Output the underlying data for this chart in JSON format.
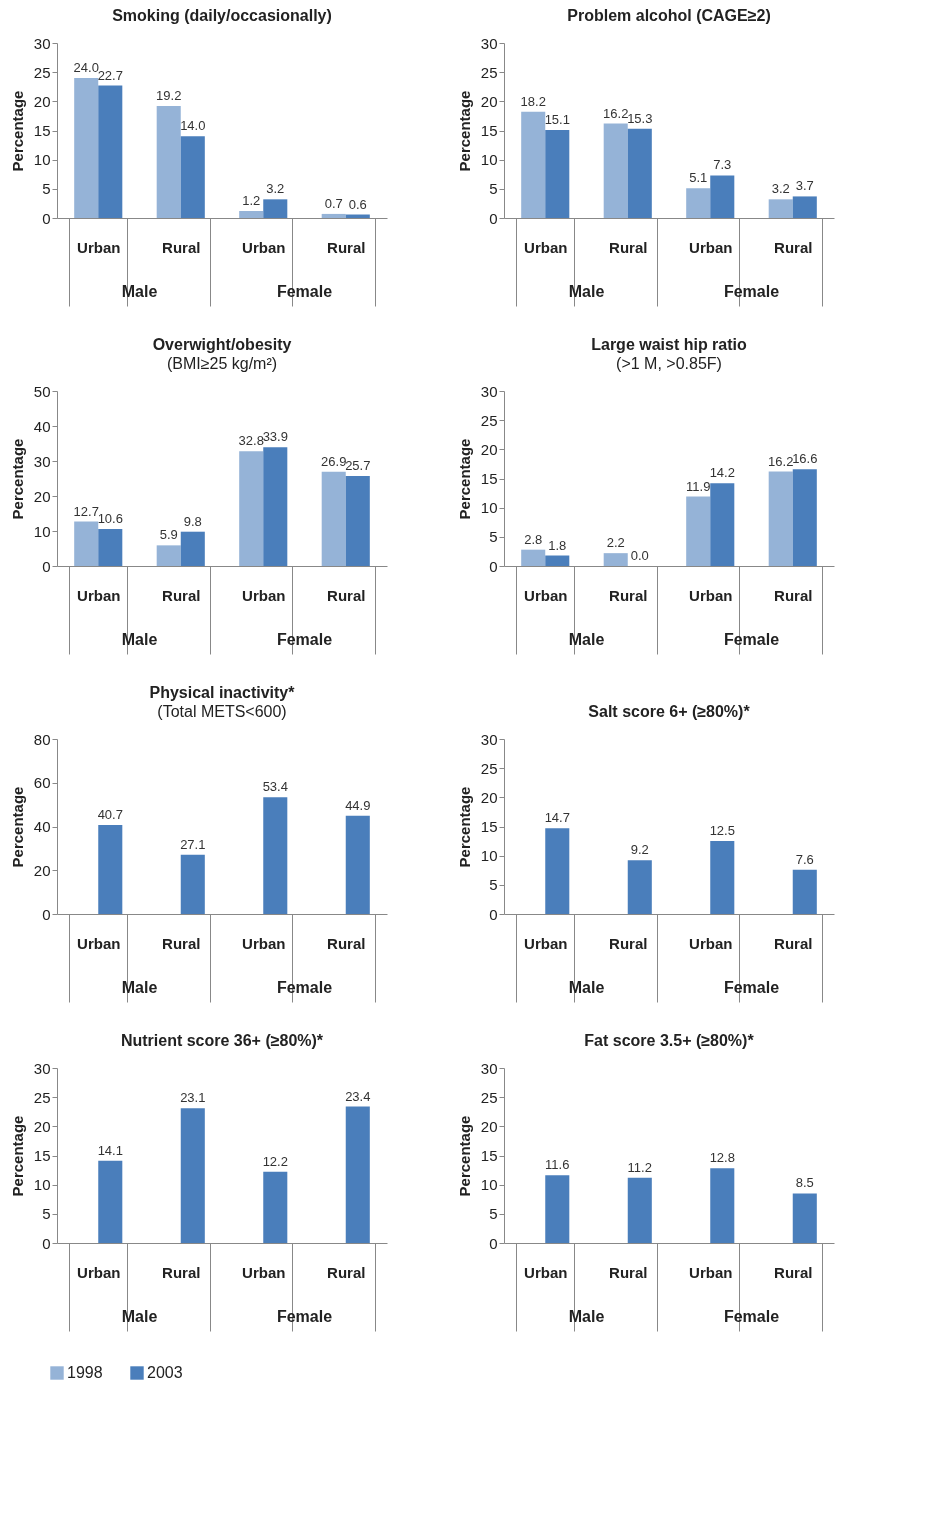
{
  "chart_data": [
    {
      "type": "bar",
      "title": "Smoking (daily/occasionally)",
      "ylabel": "Percentage",
      "categories": [
        "Urban",
        "Rural",
        "Urban",
        "Rural"
      ],
      "annotations": [
        "Male",
        "Female"
      ],
      "ylim": [
        0,
        30
      ],
      "yticks": [
        0,
        5,
        10,
        15,
        20,
        25,
        30
      ],
      "data_labels": true,
      "legend": "bottom",
      "series": [
        {
          "name": "1998",
          "color": "#95b3d7",
          "values": [
            24.0,
            19.2,
            1.2,
            0.7
          ],
          "value_labels": [
            "24.0",
            "19.2",
            "1.2",
            "0.7"
          ]
        },
        {
          "name": "2003",
          "color": "#4a7ebb",
          "values": [
            22.7,
            14.0,
            3.2,
            0.6
          ],
          "value_labels": [
            "22.7",
            "14.0",
            "3.2",
            "0.6"
          ]
        }
      ]
    },
    {
      "type": "bar",
      "title": "Problem alcohol (CAGE≥2)",
      "ylabel": "Percentage",
      "categories": [
        "Urban",
        "Rural",
        "Urban",
        "Rural"
      ],
      "annotations": [
        "Male",
        "Female"
      ],
      "ylim": [
        0,
        30
      ],
      "yticks": [
        0,
        5,
        10,
        15,
        20,
        25,
        30
      ],
      "data_labels": true,
      "legend": "bottom",
      "series": [
        {
          "name": "1998",
          "color": "#95b3d7",
          "values": [
            18.2,
            16.2,
            5.1,
            3.2
          ]
        },
        {
          "name": "2003",
          "color": "#4a7ebb",
          "values": [
            15.1,
            15.3,
            7.3,
            3.7
          ]
        }
      ]
    },
    {
      "type": "bar",
      "title": "Overwight/obesity",
      "subtitle": "(BMI≥25 kg/m²)",
      "ylabel": "Percentage",
      "categories": [
        "Urban",
        "Rural",
        "Urban",
        "Rural"
      ],
      "annotations": [
        "Male",
        "Female"
      ],
      "ylim": [
        0,
        50
      ],
      "yticks": [
        0,
        10,
        20,
        30,
        40,
        50
      ],
      "data_labels": true,
      "legend": "bottom",
      "series": [
        {
          "name": "1998",
          "color": "#95b3d7",
          "values": [
            12.7,
            5.9,
            32.8,
            26.9
          ]
        },
        {
          "name": "2003",
          "color": "#4a7ebb",
          "values": [
            10.6,
            9.8,
            33.9,
            25.7
          ]
        }
      ]
    },
    {
      "type": "bar",
      "title": "Large waist hip ratio",
      "subtitle": "(>1 M, >0.85F)",
      "ylabel": "Percentage",
      "categories": [
        "Urban",
        "Rural",
        "Urban",
        "Rural"
      ],
      "annotations": [
        "Male",
        "Female"
      ],
      "ylim": [
        0,
        30
      ],
      "yticks": [
        0,
        5,
        10,
        15,
        20,
        25,
        30
      ],
      "data_labels": true,
      "legend": "bottom",
      "series": [
        {
          "name": "1998",
          "color": "#95b3d7",
          "values": [
            2.8,
            2.2,
            11.9,
            16.2
          ]
        },
        {
          "name": "2003",
          "color": "#4a7ebb",
          "values": [
            1.8,
            0.0,
            14.2,
            16.6
          ],
          "value_labels": [
            "1.8",
            "0.0",
            "14.2",
            "16.6"
          ]
        }
      ]
    },
    {
      "type": "bar",
      "title": "Physical inactivity*",
      "subtitle": "(Total METS<600)",
      "ylabel": "Percentage",
      "categories": [
        "Urban",
        "Rural",
        "Urban",
        "Rural"
      ],
      "annotations": [
        "Male",
        "Female"
      ],
      "ylim": [
        0,
        80
      ],
      "yticks": [
        0,
        20,
        40,
        60,
        80
      ],
      "data_labels": true,
      "legend": "bottom",
      "series": [
        {
          "name": "2003",
          "color": "#4a7ebb",
          "values": [
            40.7,
            27.1,
            53.4,
            44.9
          ]
        }
      ]
    },
    {
      "type": "bar",
      "title": "Salt score 6+ (≥80%)*",
      "ylabel": "Percentage",
      "categories": [
        "Urban",
        "Rural",
        "Urban",
        "Rural"
      ],
      "annotations": [
        "Male",
        "Female"
      ],
      "ylim": [
        0,
        30
      ],
      "yticks": [
        0,
        5,
        10,
        15,
        20,
        25,
        30
      ],
      "data_labels": true,
      "legend": "bottom",
      "series": [
        {
          "name": "2003",
          "color": "#4a7ebb",
          "values": [
            14.7,
            9.2,
            12.5,
            7.6
          ]
        }
      ]
    },
    {
      "type": "bar",
      "title": "Nutrient score 36+ (≥80%)*",
      "ylabel": "Percentage",
      "categories": [
        "Urban",
        "Rural",
        "Urban",
        "Rural"
      ],
      "annotations": [
        "Male",
        "Female"
      ],
      "ylim": [
        0,
        30
      ],
      "yticks": [
        0,
        5,
        10,
        15,
        20,
        25,
        30
      ],
      "data_labels": true,
      "legend": "bottom",
      "series": [
        {
          "name": "2003",
          "color": "#4a7ebb",
          "values": [
            14.1,
            23.1,
            12.2,
            23.4
          ]
        }
      ]
    },
    {
      "type": "bar",
      "title": "Fat score 3.5+ (≥80%)*",
      "ylabel": "Percentage",
      "categories": [
        "Urban",
        "Rural",
        "Urban",
        "Rural"
      ],
      "annotations": [
        "Male",
        "Female"
      ],
      "ylim": [
        0,
        30
      ],
      "yticks": [
        0,
        5,
        10,
        15,
        20,
        25,
        30
      ],
      "data_labels": true,
      "legend": "bottom",
      "series": [
        {
          "name": "2003",
          "color": "#4a7ebb",
          "values": [
            11.6,
            11.2,
            12.8,
            8.5
          ]
        }
      ]
    }
  ]
}
